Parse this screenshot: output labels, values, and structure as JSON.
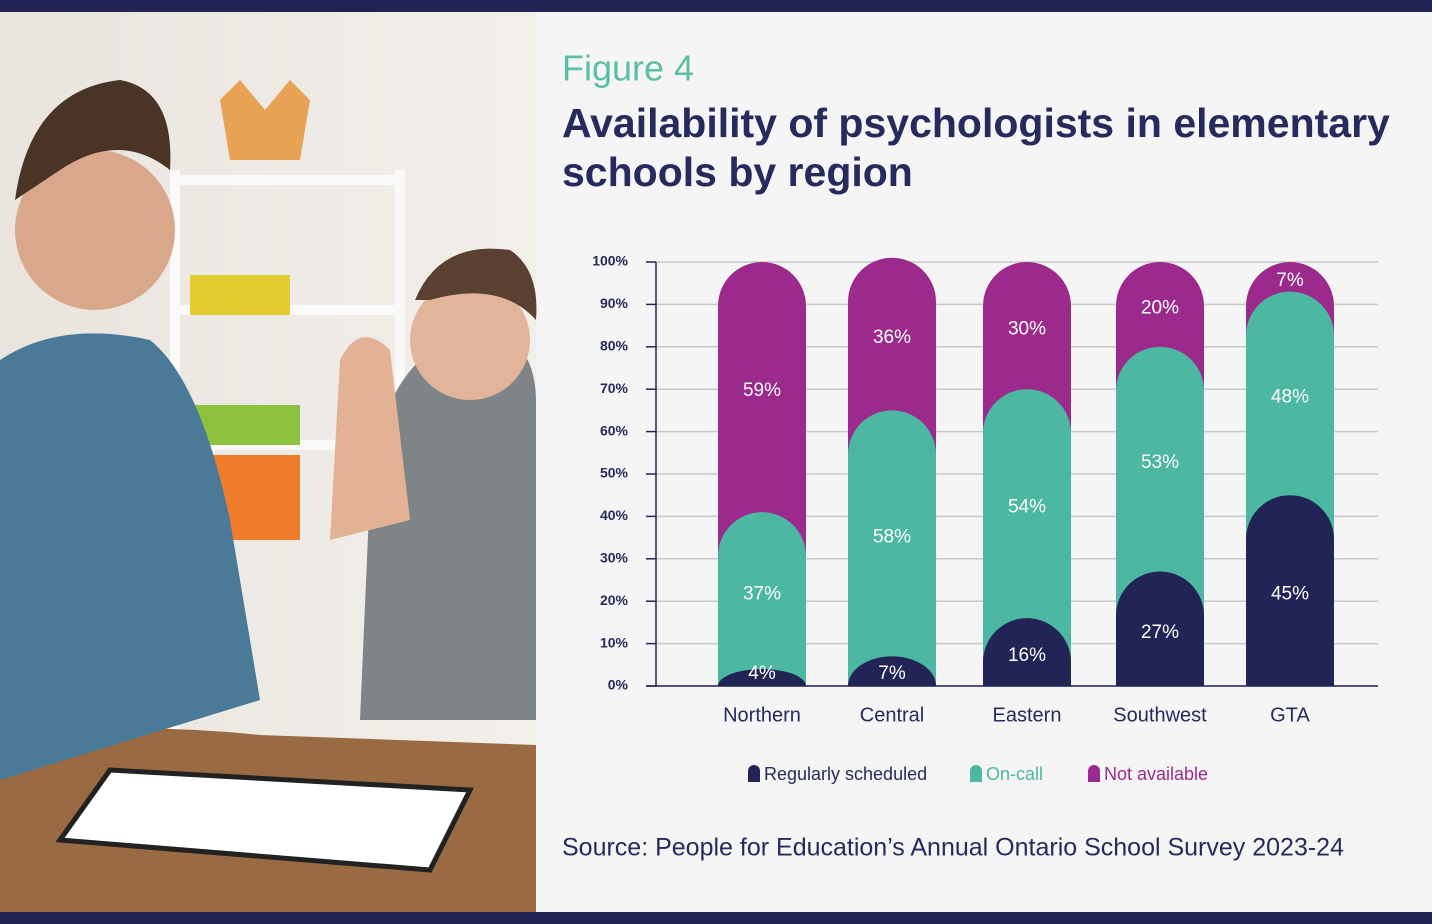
{
  "chart_data": {
    "type": "stacked-bar",
    "subtitle": "Figure 4",
    "title": "Availability of psychologists in elementary schools by region",
    "categories": [
      "Northern",
      "Central",
      "Eastern",
      "Southwest",
      "GTA"
    ],
    "series": [
      {
        "name": "Regularly scheduled",
        "color": "#232456",
        "values": [
          4,
          7,
          16,
          27,
          45
        ],
        "value_labels": [
          "4%",
          "7%",
          "16%",
          "27%",
          "45%"
        ]
      },
      {
        "name": "On-call",
        "color": "#4db8a2",
        "values": [
          37,
          58,
          54,
          53,
          48
        ],
        "value_labels": [
          "37%",
          "58%",
          "54%",
          "53%",
          "48%"
        ]
      },
      {
        "name": "Not available",
        "color": "#9b2a8c",
        "values": [
          59,
          36,
          30,
          20,
          7
        ],
        "value_labels": [
          "59%",
          "36%",
          "30%",
          "20%",
          "7%"
        ]
      }
    ],
    "ylim": [
      0,
      100
    ],
    "yticks": [
      {
        "value": 0,
        "label": "0%"
      },
      {
        "value": 10,
        "label": "10%"
      },
      {
        "value": 20,
        "label": "20%"
      },
      {
        "value": 30,
        "label": "30%"
      },
      {
        "value": 40,
        "label": "40%"
      },
      {
        "value": 50,
        "label": "50%"
      },
      {
        "value": 60,
        "label": "60%"
      },
      {
        "value": 70,
        "label": "70%"
      },
      {
        "value": 80,
        "label": "80%"
      },
      {
        "value": 90,
        "label": "90%"
      },
      {
        "value": 100,
        "label": "100%"
      }
    ],
    "grid": true,
    "source": "Source: People for Education’s Annual Ontario School Survey 2023-24"
  }
}
